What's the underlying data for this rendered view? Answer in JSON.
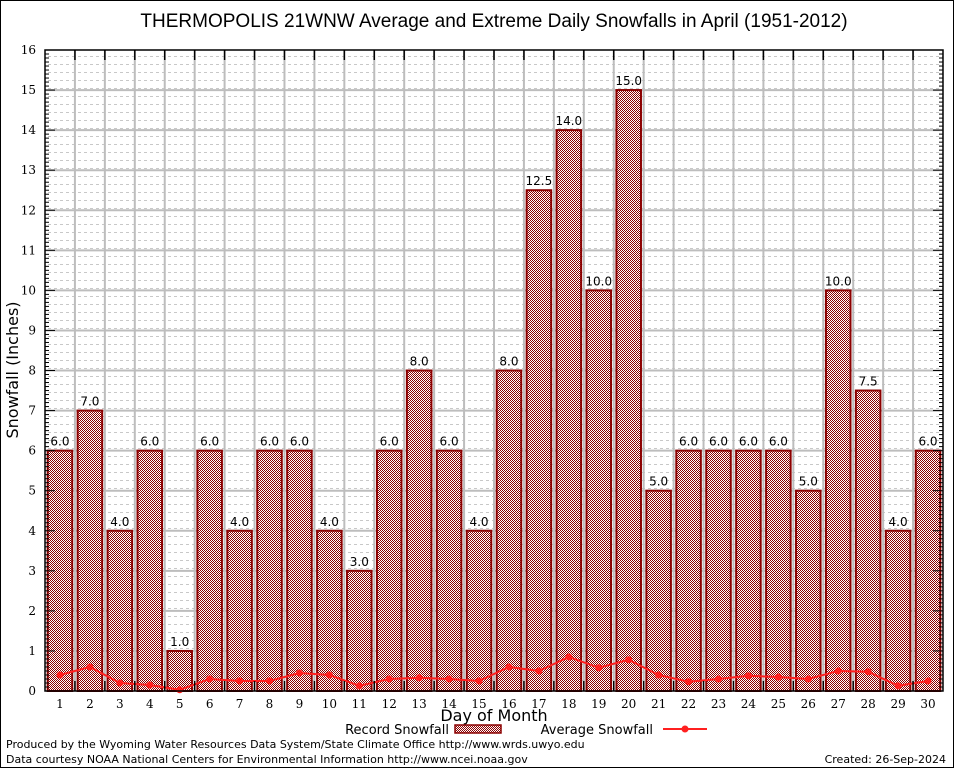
{
  "chart_data": {
    "type": "bar",
    "title": "THERMOPOLIS 21WNW Average and Extreme Daily Snowfalls in April (1951-2012)",
    "xlabel": "Day of Month",
    "ylabel": "Snowfall (Inches)",
    "ylim": [
      0,
      16
    ],
    "yticks": [
      0,
      1,
      2,
      3,
      4,
      5,
      6,
      7,
      8,
      9,
      10,
      11,
      12,
      13,
      14,
      15,
      16
    ],
    "grid": true,
    "legend_position": "bottom-center",
    "categories": [
      "1",
      "2",
      "3",
      "4",
      "5",
      "6",
      "7",
      "8",
      "9",
      "10",
      "11",
      "12",
      "13",
      "14",
      "15",
      "16",
      "17",
      "18",
      "19",
      "20",
      "21",
      "22",
      "23",
      "24",
      "25",
      "26",
      "27",
      "28",
      "29",
      "30"
    ],
    "series": [
      {
        "name": "Record Snowfall",
        "type": "bar",
        "color": "#8b0000",
        "values": [
          6.0,
          7.0,
          4.0,
          6.0,
          1.0,
          6.0,
          4.0,
          6.0,
          6.0,
          4.0,
          3.0,
          6.0,
          8.0,
          6.0,
          4.0,
          8.0,
          12.5,
          14.0,
          10.0,
          15.0,
          5.0,
          6.0,
          6.0,
          6.0,
          6.0,
          5.0,
          10.0,
          7.5,
          4.0,
          6.0
        ],
        "labels": [
          "6.0",
          "7.0",
          "4.0",
          "6.0",
          "1.0",
          "6.0",
          "4.0",
          "6.0",
          "6.0",
          "4.0",
          "3.0",
          "6.0",
          "8.0",
          "6.0",
          "4.0",
          "8.0",
          "12.5",
          "14.0",
          "10.0",
          "15.0",
          "5.0",
          "6.0",
          "6.0",
          "6.0",
          "6.0",
          "5.0",
          "10.0",
          "7.5",
          "4.0",
          "6.0"
        ]
      },
      {
        "name": "Average Snowfall",
        "type": "line",
        "color": "#ff2020",
        "values": [
          0.4,
          0.6,
          0.2,
          0.15,
          0.03,
          0.3,
          0.25,
          0.25,
          0.45,
          0.4,
          0.13,
          0.3,
          0.33,
          0.3,
          0.25,
          0.6,
          0.5,
          0.85,
          0.58,
          0.78,
          0.4,
          0.23,
          0.3,
          0.38,
          0.35,
          0.3,
          0.5,
          0.48,
          0.13,
          0.25
        ]
      }
    ]
  },
  "footer": {
    "produced_by": "Produced by the Wyoming Water Resources Data System/State Climate Office http://www.wrds.uwyo.edu",
    "data_courtesy": "Data courtesy NOAA National Centers for Environmental Information http://www.ncei.noaa.gov",
    "created": "Created:  26-Sep-2024"
  }
}
